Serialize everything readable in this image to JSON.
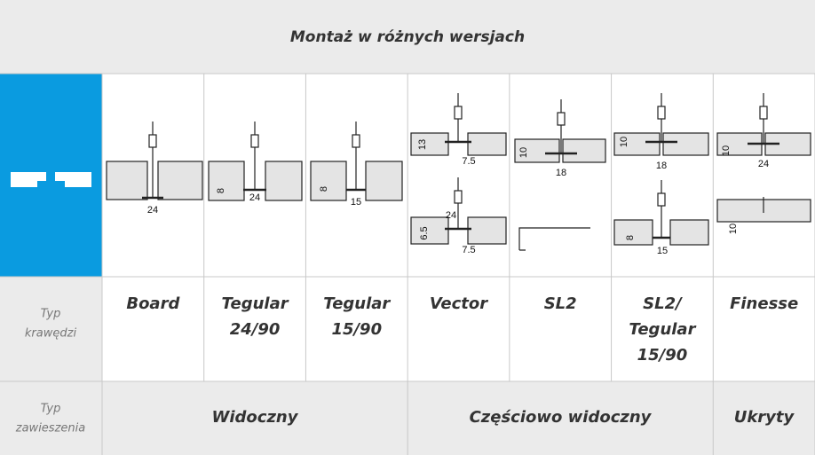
{
  "header": {
    "title": "Montaż w różnych wersjach"
  },
  "columns": [
    [
      "Board"
    ],
    [
      "Tegular",
      "24/90"
    ],
    [
      "Tegular",
      "15/90"
    ],
    [
      "Vector"
    ],
    [
      "SL2"
    ],
    [
      "SL2/",
      "Tegular",
      "15/90"
    ],
    [
      "Finesse"
    ]
  ],
  "drawings": [
    [
      "24"
    ],
    [
      "8",
      "24"
    ],
    [
      "8",
      "15"
    ],
    [
      "13",
      "7.5",
      "24",
      "6.5",
      "7.5"
    ],
    [
      "10",
      "18"
    ],
    [
      "10",
      "18",
      "8",
      "15"
    ],
    [
      "10",
      "24",
      "10"
    ]
  ],
  "row_labels": {
    "edge": [
      "Typ",
      "krawędzi"
    ],
    "suspension": [
      "Typ",
      "zawieszenia"
    ]
  },
  "suspension": [
    "Widoczny",
    "Częściowo widoczny",
    "Ukryty"
  ]
}
